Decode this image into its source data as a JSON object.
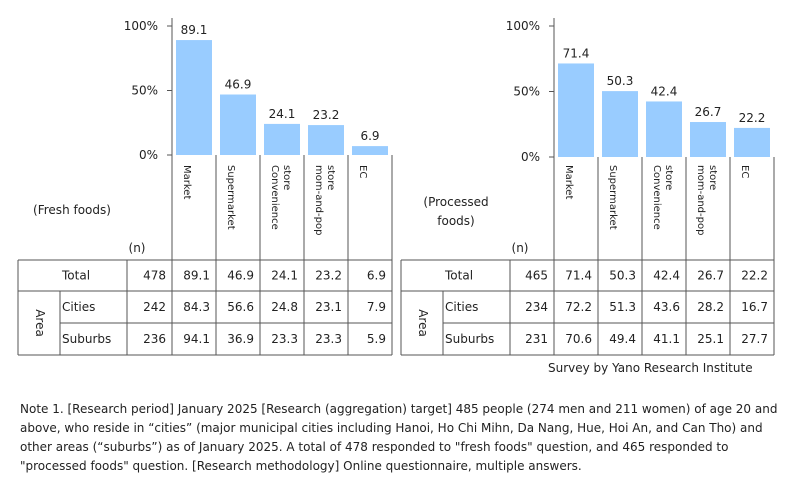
{
  "chart_data": [
    {
      "type": "table",
      "table_label": [
        "(Fresh foods)"
      ],
      "n_header": "(n)",
      "area_label": "Area",
      "y_ticks": [
        "100%",
        "50%",
        "0%"
      ],
      "ylim": [
        0,
        100
      ],
      "bar_color": "#99ccff",
      "categories": [
        "Market",
        "Supermarket",
        "Convenience store",
        "mom-and-pop store",
        "EC"
      ],
      "category_lines": [
        [
          "Market"
        ],
        [
          "Supermarket"
        ],
        [
          "Convenience",
          "store"
        ],
        [
          "mom-and-pop",
          "store"
        ],
        [
          "EC"
        ]
      ],
      "values": [
        89.1,
        46.9,
        24.1,
        23.2,
        6.9
      ],
      "value_labels": [
        "89.1",
        "46.9",
        "24.1",
        "23.2",
        "6.9"
      ],
      "rows": [
        {
          "label": "Total",
          "n": "478",
          "values": [
            "89.1",
            "46.9",
            "24.1",
            "23.2",
            "6.9"
          ]
        },
        {
          "label": "Cities",
          "n": "242",
          "values": [
            "84.3",
            "56.6",
            "24.8",
            "23.1",
            "7.9"
          ]
        },
        {
          "label": "Suburbs",
          "n": "236",
          "values": [
            "94.1",
            "36.9",
            "23.3",
            "23.3",
            "5.9"
          ]
        }
      ]
    },
    {
      "type": "table",
      "table_label": [
        "(Processed",
        "foods)"
      ],
      "n_header": "(n)",
      "area_label": "Area",
      "y_ticks": [
        "100%",
        "50%",
        "0%"
      ],
      "ylim": [
        0,
        100
      ],
      "bar_color": "#99ccff",
      "categories": [
        "Market",
        "Supermarket",
        "Convenience store",
        "mom-and-pop store",
        "EC"
      ],
      "category_lines": [
        [
          "Market"
        ],
        [
          "Supermarket"
        ],
        [
          "Convenience",
          "store"
        ],
        [
          "mom-and-pop",
          "store"
        ],
        [
          "EC"
        ]
      ],
      "values": [
        71.4,
        50.3,
        42.4,
        26.7,
        22.2
      ],
      "value_labels": [
        "71.4",
        "50.3",
        "42.4",
        "26.7",
        "22.2"
      ],
      "rows": [
        {
          "label": "Total",
          "n": "465",
          "values": [
            "71.4",
            "50.3",
            "42.4",
            "26.7",
            "22.2"
          ]
        },
        {
          "label": "Cities",
          "n": "234",
          "values": [
            "72.2",
            "51.3",
            "43.6",
            "28.2",
            "16.7"
          ]
        },
        {
          "label": "Suburbs",
          "n": "231",
          "values": [
            "70.6",
            "49.4",
            "41.1",
            "25.1",
            "27.7"
          ]
        }
      ]
    }
  ],
  "source": "Survey by Yano Research Institute",
  "note": "Note 1. [Research period] January 2025 [Research (aggregation) target] 485 people (274 men and 211 women) of age 20 and above, who reside in “cities” (major municipal cities including Hanoi, Ho Chi Mihn, Da Nang, Hue, Hoi An, and Can Tho) and other areas (“suburbs”) as of January 2025. A total of 478 responded to \"fresh foods\" question, and 465 responded to \"processed foods\" question. [Research methodology] Online questionnaire, multiple answers."
}
